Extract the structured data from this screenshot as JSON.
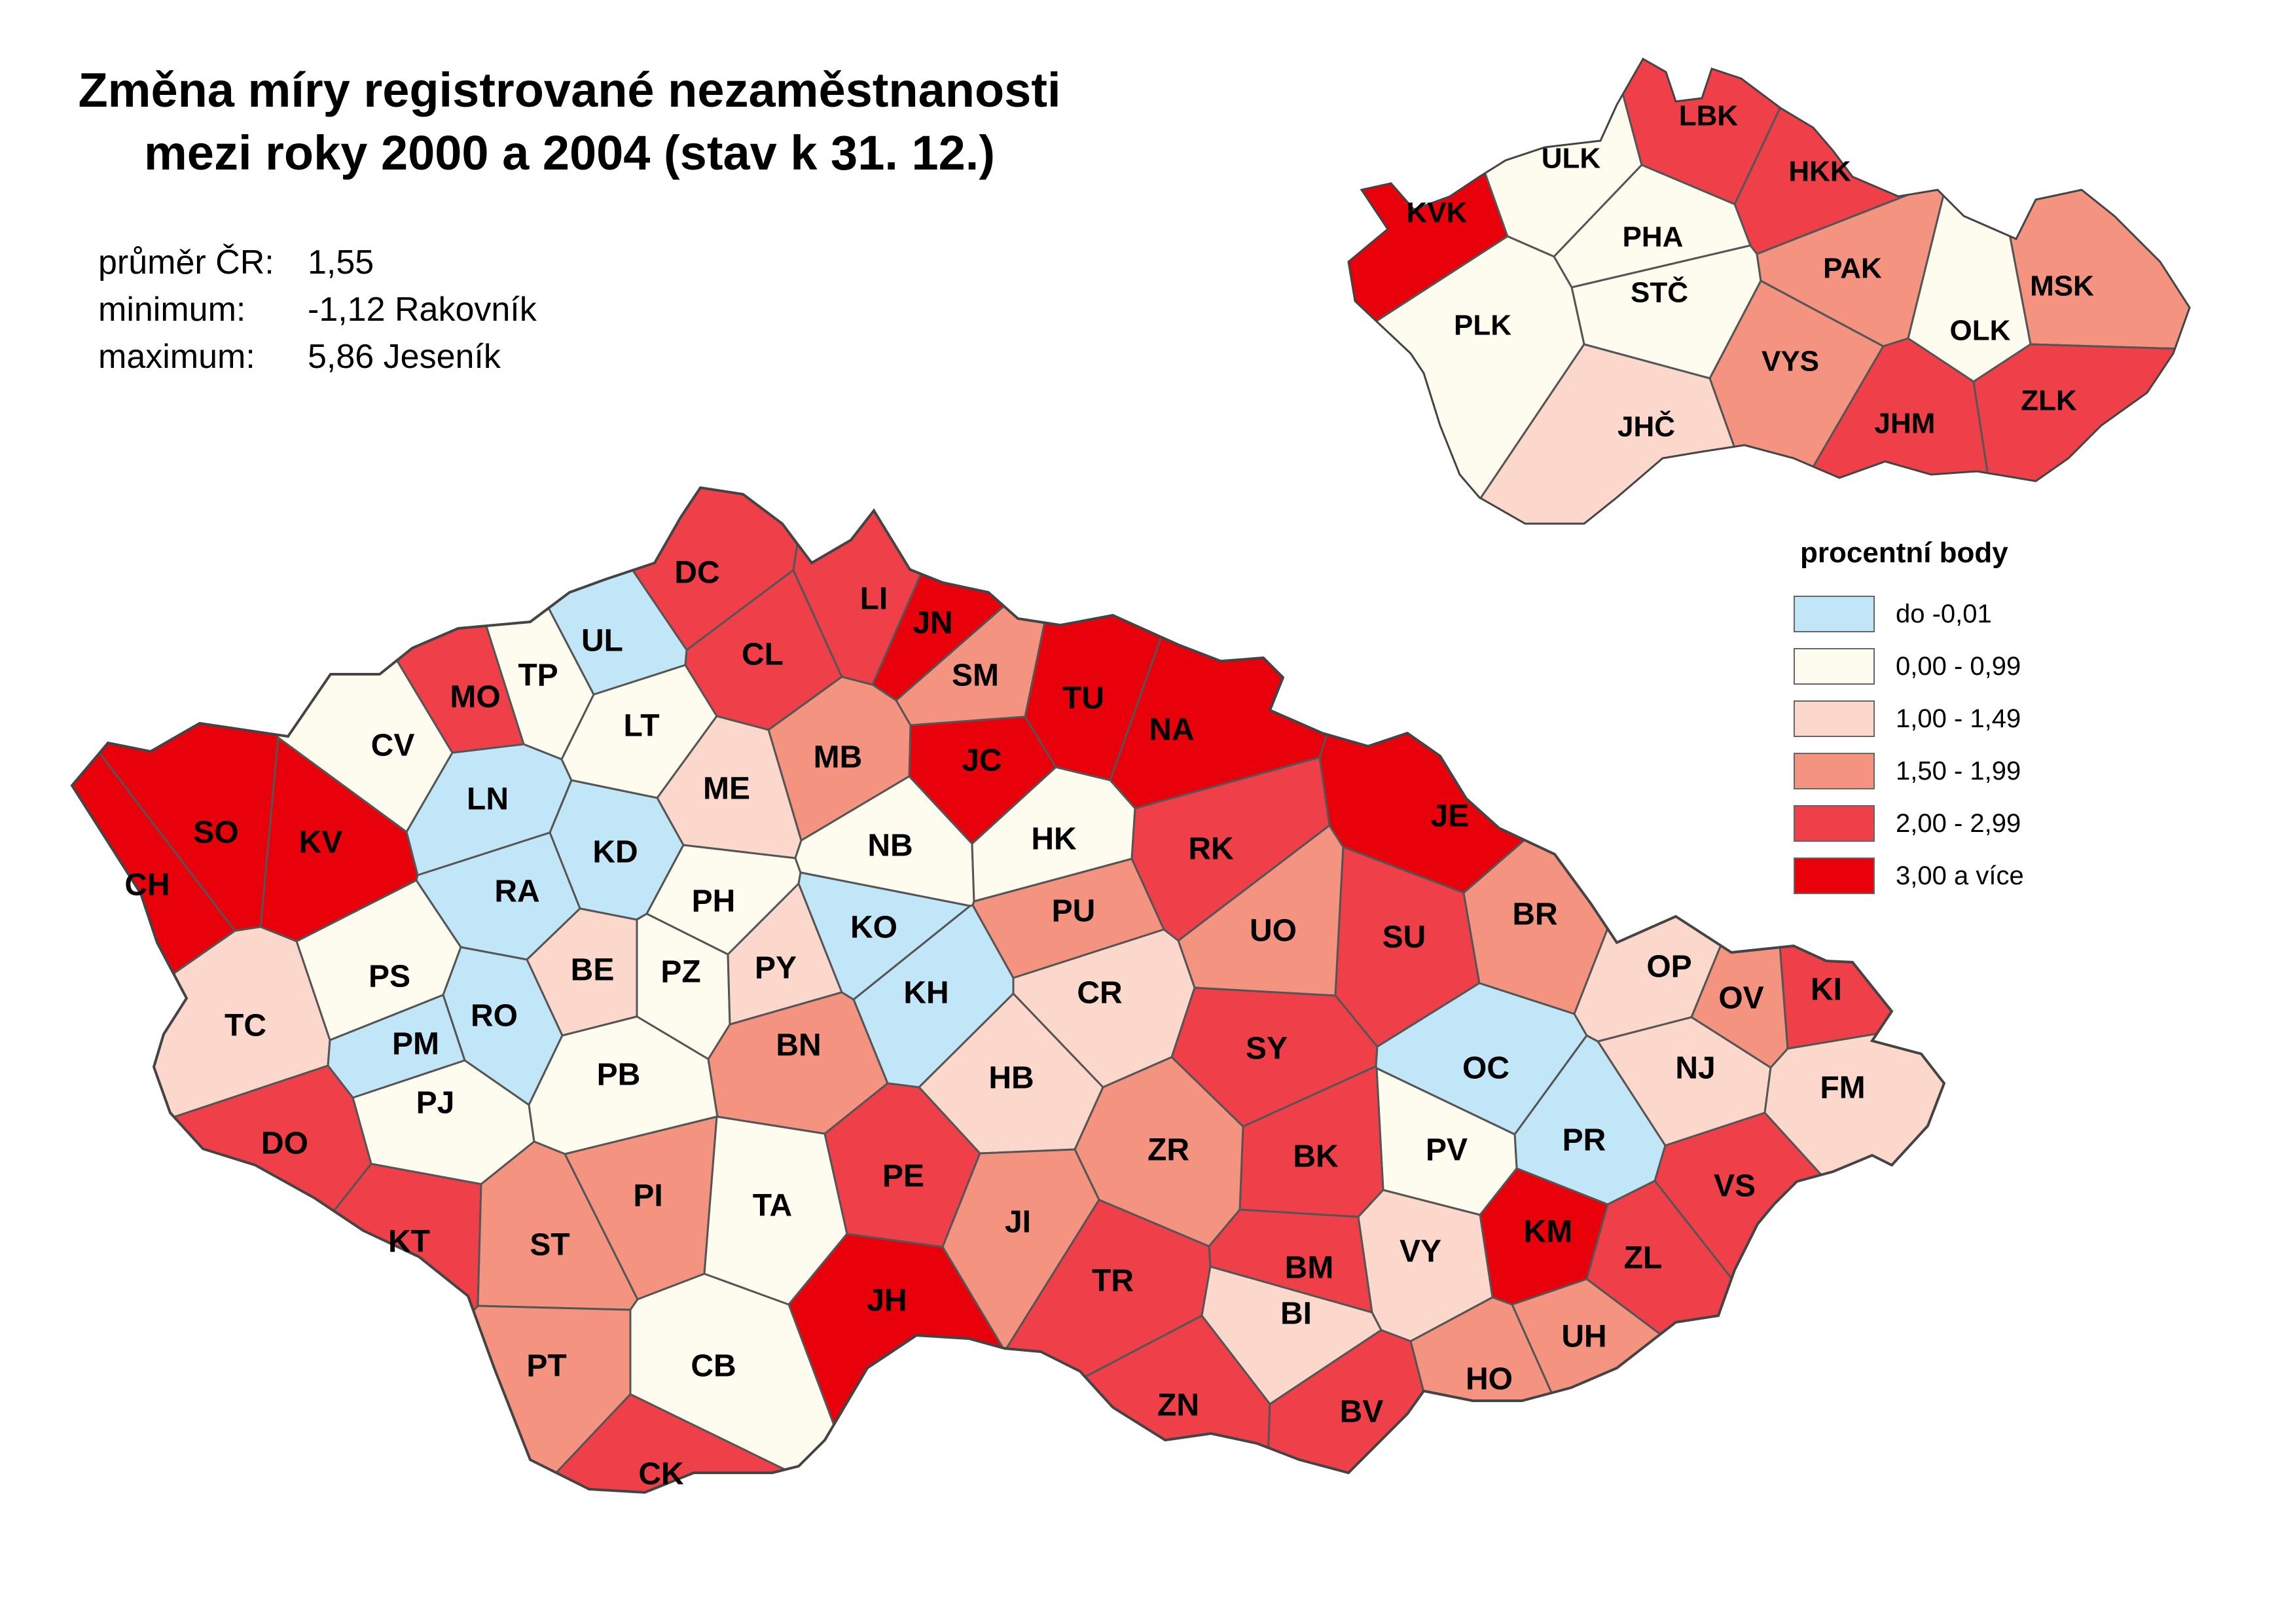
{
  "title": [
    "Změna míry registrované nezaměstnanosti",
    "mezi roky 2000 a 2004  (stav k 31. 12.)"
  ],
  "stats": [
    {
      "label": "průměr ČR:",
      "value": "1,55"
    },
    {
      "label": "minimum:",
      "value": "-1,12 Rakovník"
    },
    {
      "label": "maximum:",
      "value": "5,86 Jeseník"
    }
  ],
  "legend": {
    "title": "procentní body",
    "classes": [
      {
        "label": "do  -0,01",
        "color": "#c0e6f8"
      },
      {
        "label": "0,00 - 0,99",
        "color": "#fefbef"
      },
      {
        "label": "1,00 - 1,49",
        "color": "#fbd8cb"
      },
      {
        "label": "1,50 - 1,99",
        "color": "#f4937f"
      },
      {
        "label": "2,00 - 2,99",
        "color": "#ef404a"
      },
      {
        "label": "3,00 a více",
        "color": "#e8000b"
      }
    ]
  },
  "districts": {
    "DC": 4,
    "UL": 0,
    "TP": 1,
    "MO": 4,
    "CV": 1,
    "LN": 0,
    "LT": 1,
    "CL": 4,
    "LI": 4,
    "JN": 5,
    "SM": 3,
    "TU": 5,
    "NA": 5,
    "JC": 5,
    "MB": 3,
    "ME": 2,
    "SO": 5,
    "KV": 5,
    "CH": 5,
    "KD": 0,
    "RA": 0,
    "PH": 1,
    "NB": 1,
    "HK": 1,
    "RK": 4,
    "KO": 0,
    "PU": 3,
    "UO": 3,
    "JE": 5,
    "SU": 4,
    "BR": 3,
    "PS": 1,
    "BE": 2,
    "PZ": 1,
    "PY": 2,
    "KH": 0,
    "CR": 2,
    "TC": 2,
    "RO": 0,
    "PM": 0,
    "PJ": 1,
    "PB": 1,
    "BN": 3,
    "SY": 4,
    "OP": 2,
    "OV": 3,
    "KI": 4,
    "OC": 0,
    "NJ": 2,
    "FM": 2,
    "HB": 2,
    "DO": 4,
    "PR": 0,
    "PV": 1,
    "BK": 4,
    "ZR": 3,
    "VS": 4,
    "KT": 4,
    "ST": 3,
    "PI": 3,
    "TA": 1,
    "PE": 4,
    "JI": 3,
    "KM": 5,
    "ZL": 4,
    "VY": 2,
    "BM": 4,
    "TR": 4,
    "JH": 5,
    "BI": 2,
    "UH": 3,
    "PT": 3,
    "CB": 1,
    "HO": 3,
    "ZN": 4,
    "BV": 4,
    "CK": 4
  },
  "regions": {
    "KVK": 5,
    "ULK": 1,
    "LBK": 4,
    "HKK": 4,
    "PHA": 1,
    "STČ": 1,
    "PLK": 1,
    "PAK": 3,
    "MSK": 3,
    "OLK": 1,
    "VYS": 3,
    "JHČ": 2,
    "JHM": 4,
    "ZLK": 4
  }
}
